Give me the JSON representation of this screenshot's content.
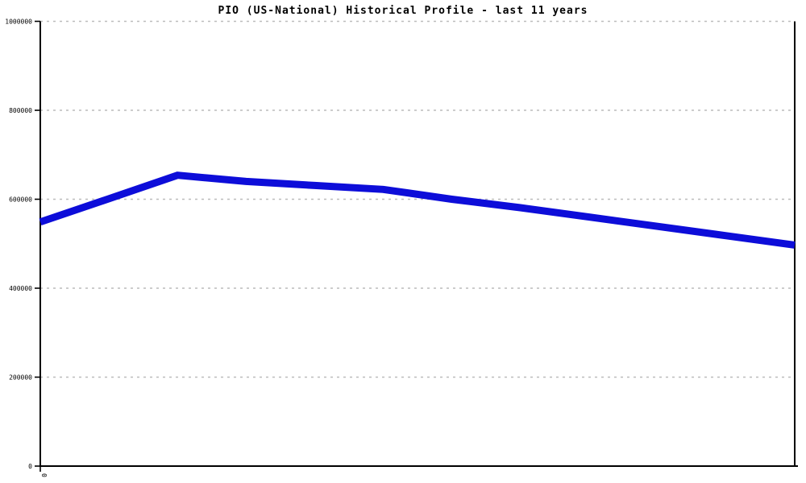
{
  "title": "PIO (US-National) Historical Profile - last 11 years",
  "chart_data": {
    "type": "line",
    "title": "PIO (US-National) Historical Profile - last 11 years",
    "xlabel": "",
    "ylabel": "",
    "x": [
      0,
      1,
      2,
      3,
      4,
      5,
      6,
      7,
      8,
      9,
      10,
      11
    ],
    "values": [
      549000,
      601000,
      654000,
      640000,
      631000,
      622000,
      600000,
      581000,
      560000,
      539000,
      518000,
      497000
    ],
    "series_name": "PIO (US-National)",
    "x_span_years": 11,
    "ylim": [
      0,
      1000000
    ],
    "yticks": [
      0,
      200000,
      400000,
      600000,
      800000,
      1000000
    ],
    "ytick_labels": [
      "0",
      "200000",
      "400000",
      "600000",
      "800000",
      "1000000"
    ],
    "xtick_labels": [
      "0"
    ],
    "grid": "horizontal-dashed",
    "legend": "none",
    "line_color": "#0d0dd9"
  },
  "colors": {
    "line": "#0d0dd9",
    "grid": "#bcbcbc",
    "axis": "#000000",
    "background": "#ffffff",
    "text": "#000000"
  }
}
